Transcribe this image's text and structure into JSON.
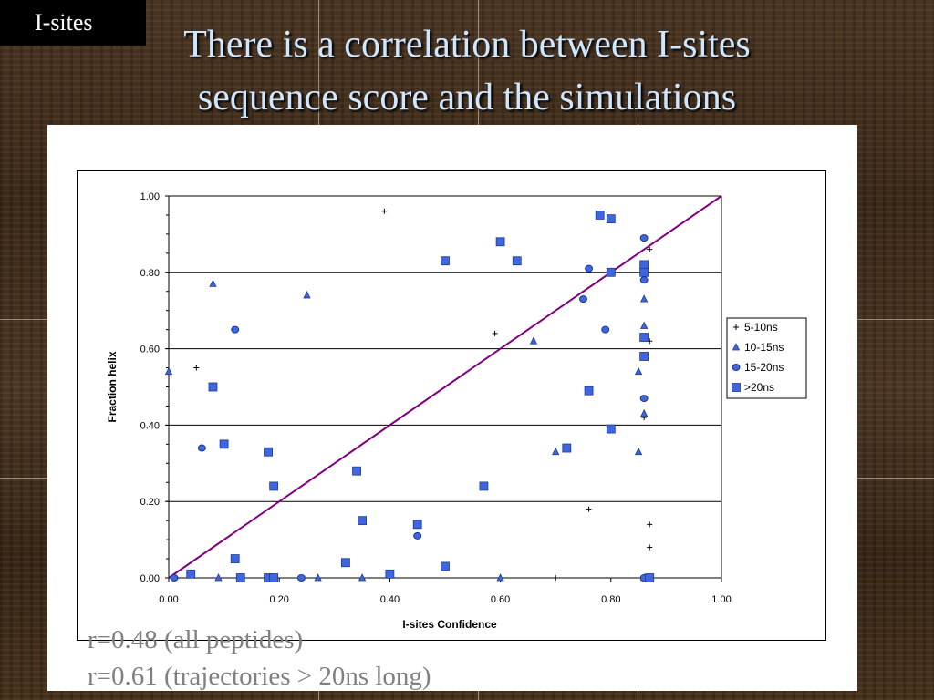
{
  "slide": {
    "tag": "I-sites",
    "title_line1": "There is a correlation between I-sites",
    "title_line2": "sequence score and the simulations",
    "caption1": "r=0.48 (all peptides)",
    "caption2": "r=0.61 (trajectories > 20ns long)"
  },
  "chart_data": {
    "type": "scatter",
    "xlabel": "I-sites Confidence",
    "ylabel": "Fraction helix",
    "xlim": [
      0,
      1
    ],
    "ylim": [
      0,
      1
    ],
    "xticks": [
      "0.00",
      "0.20",
      "0.40",
      "0.60",
      "0.80",
      "1.00"
    ],
    "yticks": [
      "0.00",
      "0.20",
      "0.40",
      "0.60",
      "0.80",
      "1.00"
    ],
    "grid": "horizontal",
    "legend_position": "right",
    "reference_line": {
      "from": [
        0,
        0
      ],
      "to": [
        1,
        1
      ],
      "color": "#800080"
    },
    "colors": {
      "marker": "#3f66e0",
      "marker_edge": "#1e3a8a",
      "plus": "#000000"
    },
    "series": [
      {
        "name": "5-10ns",
        "marker": "plus",
        "points": [
          [
            0.05,
            0.55
          ],
          [
            0.39,
            0.96
          ],
          [
            0.59,
            0.64
          ],
          [
            0.76,
            0.18
          ],
          [
            0.86,
            0.42
          ],
          [
            0.87,
            0.86
          ],
          [
            0.87,
            0.62
          ],
          [
            0.87,
            0.14
          ],
          [
            0.87,
            0.08
          ],
          [
            0.6,
            0.0
          ],
          [
            0.7,
            0.0
          ]
        ]
      },
      {
        "name": "10-15ns",
        "marker": "triangle",
        "points": [
          [
            0.0,
            0.54
          ],
          [
            0.08,
            0.77
          ],
          [
            0.25,
            0.74
          ],
          [
            0.66,
            0.62
          ],
          [
            0.7,
            0.33
          ],
          [
            0.85,
            0.54
          ],
          [
            0.85,
            0.33
          ],
          [
            0.86,
            0.73
          ],
          [
            0.86,
            0.66
          ],
          [
            0.86,
            0.43
          ],
          [
            0.09,
            0.0
          ],
          [
            0.19,
            0.0
          ],
          [
            0.27,
            0.0
          ],
          [
            0.35,
            0.0
          ],
          [
            0.6,
            0.0
          ],
          [
            0.86,
            0.0
          ]
        ]
      },
      {
        "name": "15-20ns",
        "marker": "diamond",
        "points": [
          [
            0.01,
            0.0
          ],
          [
            0.06,
            0.34
          ],
          [
            0.12,
            0.65
          ],
          [
            0.24,
            0.0
          ],
          [
            0.45,
            0.11
          ],
          [
            0.75,
            0.73
          ],
          [
            0.76,
            0.81
          ],
          [
            0.79,
            0.65
          ],
          [
            0.86,
            0.89
          ],
          [
            0.86,
            0.78
          ],
          [
            0.86,
            0.47
          ],
          [
            0.86,
            0.0
          ]
        ]
      },
      {
        "name": ">20ns",
        "marker": "square",
        "points": [
          [
            0.04,
            0.01
          ],
          [
            0.08,
            0.5
          ],
          [
            0.1,
            0.35
          ],
          [
            0.12,
            0.05
          ],
          [
            0.13,
            0.0
          ],
          [
            0.18,
            0.33
          ],
          [
            0.18,
            0.0
          ],
          [
            0.19,
            0.24
          ],
          [
            0.19,
            0.0
          ],
          [
            0.32,
            0.04
          ],
          [
            0.34,
            0.28
          ],
          [
            0.35,
            0.15
          ],
          [
            0.4,
            0.01
          ],
          [
            0.45,
            0.14
          ],
          [
            0.5,
            0.83
          ],
          [
            0.5,
            0.03
          ],
          [
            0.57,
            0.24
          ],
          [
            0.6,
            0.88
          ],
          [
            0.63,
            0.83
          ],
          [
            0.72,
            0.34
          ],
          [
            0.76,
            0.49
          ],
          [
            0.78,
            0.95
          ],
          [
            0.8,
            0.94
          ],
          [
            0.8,
            0.8
          ],
          [
            0.8,
            0.39
          ],
          [
            0.86,
            0.82
          ],
          [
            0.86,
            0.8
          ],
          [
            0.86,
            0.63
          ],
          [
            0.86,
            0.58
          ],
          [
            0.87,
            0.0
          ]
        ]
      }
    ]
  }
}
